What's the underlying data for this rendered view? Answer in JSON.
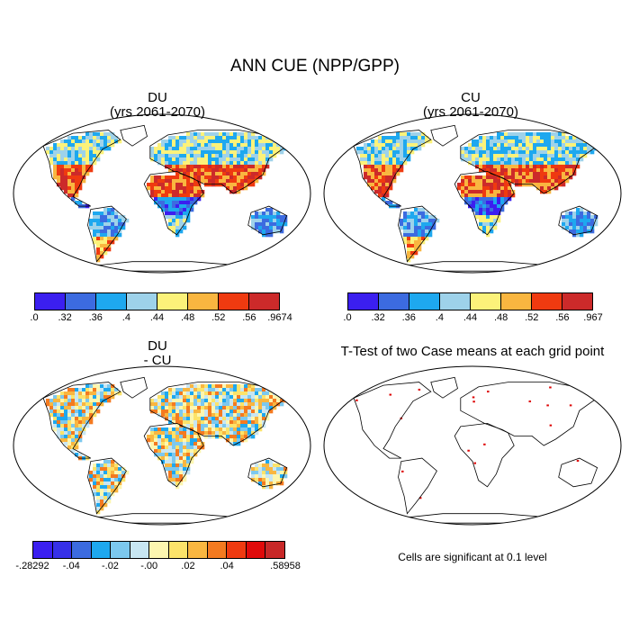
{
  "figure": {
    "title": "ANN CUE (NPP/GPP)"
  },
  "panels": [
    {
      "id": "du",
      "title_line1": "DU",
      "title_line2": "(yrs 2061-2070)",
      "colorbar": {
        "labels": [
          ".0",
          ".32",
          ".36",
          ".4",
          ".44",
          ".48",
          ".52",
          ".56",
          ".9674"
        ],
        "colors": [
          "#3b1ff0",
          "#3c6be0",
          "#1ea8ef",
          "#9ed2ea",
          "#fcf27a",
          "#f9b640",
          "#ef3a10",
          "#cc2a2a"
        ]
      }
    },
    {
      "id": "cu",
      "title_line1": "CU",
      "title_line2": "(yrs 2061-2070)",
      "colorbar": {
        "labels": [
          ".0",
          ".32",
          ".36",
          ".4",
          ".44",
          ".48",
          ".52",
          ".56",
          ".967"
        ],
        "colors": [
          "#3b1ff0",
          "#3c6be0",
          "#1ea8ef",
          "#9ed2ea",
          "#fcf27a",
          "#f9b640",
          "#ef3a10",
          "#cc2a2a"
        ]
      }
    },
    {
      "id": "diff",
      "title_line1": "DU",
      "title_line2": "- CU",
      "colorbar": {
        "labels": [
          "-.28292",
          "-.04",
          "-.02",
          "-.00",
          ".02",
          ".04",
          ".58958"
        ],
        "colors": [
          "#3b1ff0",
          "#3730e8",
          "#3c6be0",
          "#1ea8ef",
          "#7cc8ee",
          "#c8e6f2",
          "#fcf6b0",
          "#fce36a",
          "#f9b640",
          "#f47a20",
          "#ef3a10",
          "#e00a0a",
          "#c82828"
        ]
      }
    },
    {
      "id": "ttest",
      "title_line1": "T-Test of two Case means at each grid point",
      "significance_note": "Cells are significant at 0.1 level",
      "significance_color": "#dd0000"
    }
  ]
}
